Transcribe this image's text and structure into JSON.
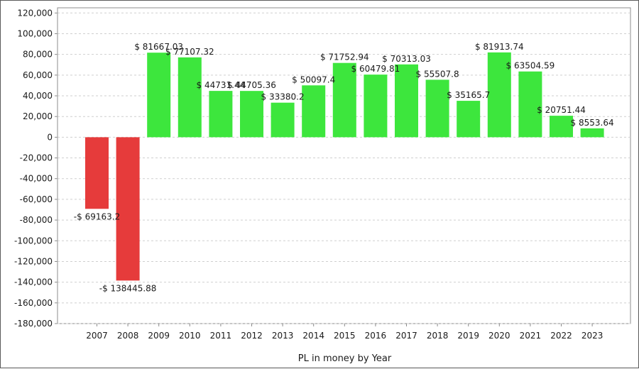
{
  "chart_data": {
    "type": "bar",
    "categories": [
      "2007",
      "2008",
      "2009",
      "2010",
      "2011",
      "2012",
      "2013",
      "2014",
      "2015",
      "2016",
      "2017",
      "2018",
      "2019",
      "2020",
      "2021",
      "2022",
      "2023"
    ],
    "values": [
      -69163.2,
      -138445.88,
      81667.03,
      77107.32,
      44731.44,
      44705.36,
      33380.2,
      50097.4,
      71752.94,
      60479.81,
      70313.03,
      55507.8,
      35165.7,
      81913.74,
      63504.59,
      20751.44,
      8553.64
    ],
    "data_labels": [
      "-$ 69163.2",
      "-$ 138445.88",
      "$ 81667.03",
      "$ 77107.32",
      "$ 44731.44",
      "$ 44705.36",
      "$ 33380.2",
      "$ 50097.4",
      "$ 71752.94",
      "$ 60479.81",
      "$ 70313.03",
      "$ 55507.8",
      "$ 35165.7",
      "$ 81913.74",
      "$ 63504.59",
      "$ 20751.44",
      "$ 8553.64"
    ],
    "y_tick_values": [
      120000,
      100000,
      80000,
      60000,
      40000,
      20000,
      0,
      -20000,
      -40000,
      -60000,
      -80000,
      -100000,
      -120000,
      -140000,
      -160000,
      -180000
    ],
    "y_tick_labels": [
      "120,000",
      "100,000",
      "80,000",
      "60,000",
      "40,000",
      "20,000",
      "0",
      "-20,000",
      "-40,000",
      "-60,000",
      "-80,000",
      "-100,000",
      "-120,000",
      "-140,000",
      "-160,000",
      "-180,000"
    ],
    "ylim": [
      -180000,
      125000
    ],
    "xlabel": "PL in money by Year",
    "ylabel": "",
    "grid": true,
    "colors": {
      "positive": "#3de63d",
      "negative": "#e63b3b",
      "grid": "#cfcfcf",
      "axis": "#8c8c8c"
    }
  }
}
